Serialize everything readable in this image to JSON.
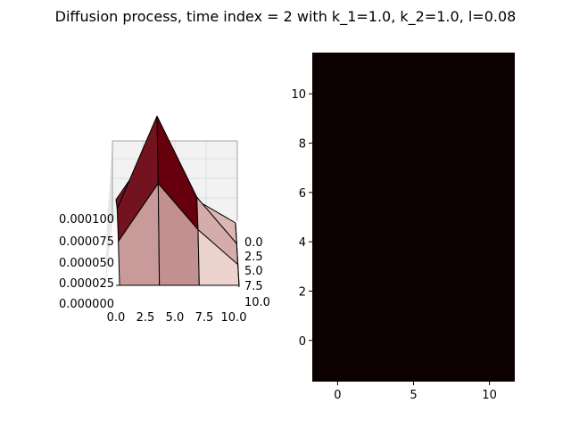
{
  "title": "Diffusion process, time index = 2 with k_1=1.0, k_2=1.0, l=0.08",
  "chart_data": [
    {
      "type": "surface3d",
      "x_ticks": [
        "0.0",
        "2.5",
        "5.0",
        "7.5",
        "10.0"
      ],
      "y_ticks": [
        "0.0",
        "2.5",
        "5.0",
        "7.5",
        "10.0"
      ],
      "z_ticks": [
        "0.000000",
        "0.000025",
        "0.000050",
        "0.000075",
        "0.000100"
      ],
      "x_range": [
        0,
        10
      ],
      "y_range": [
        0,
        10
      ],
      "z_range": [
        0,
        0.0001
      ],
      "colormap": "Reds",
      "grid": [
        [
          2e-05,
          7e-05,
          2e-05,
          0.0
        ],
        [
          3e-05,
          0.00011,
          4e-05,
          0.0
        ],
        [
          2e-05,
          7e-05,
          3e-05,
          0.0
        ],
        [
          0.0,
          0.0,
          0.0,
          0.0
        ]
      ]
    },
    {
      "type": "heatmap",
      "x_ticks": [
        "0",
        "5",
        "10"
      ],
      "y_ticks": [
        "0",
        "2",
        "4",
        "6",
        "8",
        "10"
      ],
      "x_range": [
        -1.67,
        11.67
      ],
      "y_range": [
        -1.67,
        11.67
      ],
      "fill_color": "#0d0000"
    }
  ]
}
